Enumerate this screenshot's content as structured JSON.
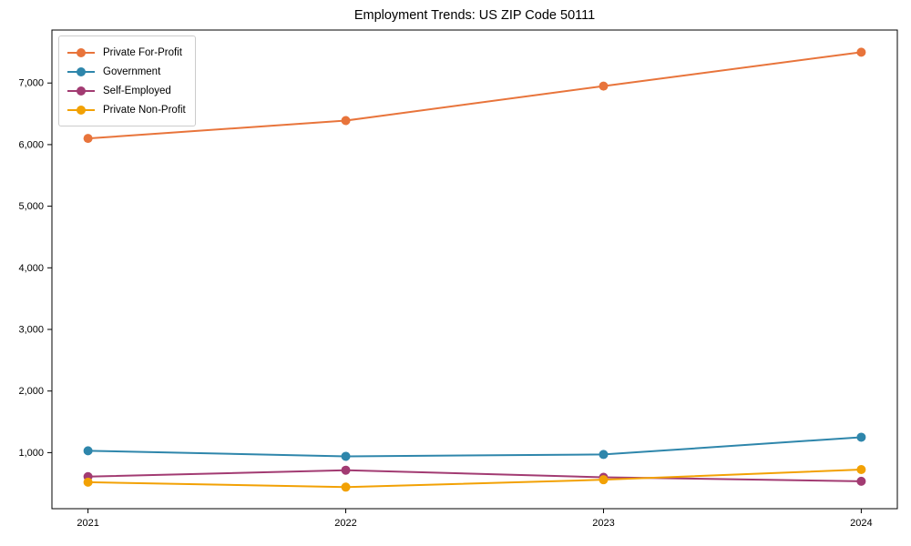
{
  "title": "Employment Trends: US ZIP Code 50111",
  "chart_data": {
    "type": "line",
    "title": "Employment Trends: US ZIP Code 50111",
    "xlabel": "",
    "ylabel": "",
    "x": [
      2021,
      2022,
      2023,
      2024
    ],
    "x_tick_labels": [
      "2021",
      "2022",
      "2023",
      "2024"
    ],
    "yticks": [
      1000,
      2000,
      3000,
      4000,
      5000,
      6000,
      7000
    ],
    "ytick_labels": [
      "1,000",
      "2,000",
      "3,000",
      "4,000",
      "5,000",
      "6,000",
      "7,000"
    ],
    "xlim": [
      2020.86,
      2024.14
    ],
    "ylim": [
      90,
      7860
    ],
    "grid": false,
    "marker": "circle",
    "legend_position": "upper left",
    "series": [
      {
        "name": "Private For-Profit",
        "color": "#e8743b",
        "values": [
          6100,
          6390,
          6950,
          7500
        ]
      },
      {
        "name": "Government",
        "color": "#2e86ab",
        "values": [
          1030,
          940,
          970,
          1250
        ]
      },
      {
        "name": "Self-Employed",
        "color": "#a23b72",
        "values": [
          610,
          715,
          600,
          535
        ]
      },
      {
        "name": "Private Non-Profit",
        "color": "#f2a104",
        "values": [
          520,
          440,
          560,
          725
        ]
      }
    ],
    "axis_color": "#000000",
    "background_color": "#ffffff"
  }
}
